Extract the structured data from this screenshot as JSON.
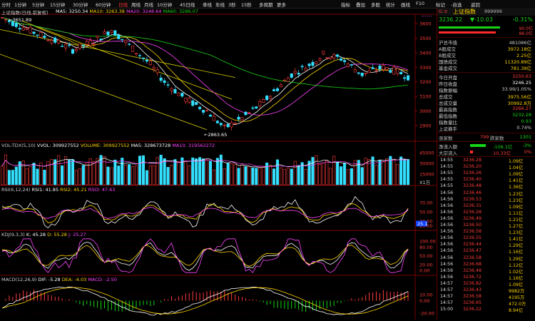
{
  "toolbar": {
    "items": [
      "分时",
      "1分钟",
      "5分钟",
      "15分钟",
      "30分钟",
      "60分钟",
      "日线",
      "周线",
      "月线",
      "10分钟",
      "45日线",
      "季线",
      "年线",
      "3秒",
      "15秒",
      "多周期",
      "更多"
    ],
    "active_index": 6,
    "right_items": [
      "指标",
      "叠加",
      "多股",
      "统计",
      "画线",
      "F10",
      "标记",
      "-自选",
      "返回"
    ]
  },
  "main": {
    "title": "上证指数(日线,前复权)",
    "ma_legend": [
      {
        "label": "MA5: 3250.34",
        "color": "#ffffff"
      },
      {
        "label": "MA10: 3263.38",
        "color": "#ffd400"
      },
      {
        "label": "MA20: 3248.64",
        "color": "#ff44ff"
      },
      {
        "label": "MA60: 3286.07",
        "color": "#17d517"
      }
    ],
    "price_ticks": [
      "3600",
      "3500",
      "3400",
      "3300",
      "3200",
      "3100",
      "3000",
      "2900"
    ],
    "high_label": "3651.89",
    "low_label": "2863.65"
  },
  "volume": {
    "legend": [
      {
        "label": "VOL-TDX(5,10)",
        "color": "#ccc"
      },
      {
        "label": "VVOL: 309927552",
        "color": "#fff"
      },
      {
        "label": "VOLUME: 309927552",
        "color": "#ffd400"
      },
      {
        "label": "MA5: 328673728",
        "color": "#fff"
      },
      {
        "label": "MA10: 319562272",
        "color": "#ff44ff"
      }
    ],
    "ticks": [
      "45000",
      "30000",
      "15000"
    ],
    "unit": "X1万"
  },
  "rsi": {
    "legend": [
      {
        "label": "RSI(6,12,24)",
        "color": "#ccc"
      },
      {
        "label": "RSI1: 41.85",
        "color": "#fff"
      },
      {
        "label": "RSI2: 45.21",
        "color": "#ffd400"
      },
      {
        "label": "RSI3: 47.63",
        "color": "#ff44ff"
      }
    ],
    "ticks": [
      "70.00",
      "50.00",
      "30.00",
      "20.00"
    ],
    "marker": "25.1"
  },
  "kdj": {
    "legend": [
      {
        "label": "KDJ(9,3,3)",
        "color": "#ccc"
      },
      {
        "label": "K: 45.28",
        "color": "#fff"
      },
      {
        "label": "D: 55.28",
        "color": "#ffd400"
      },
      {
        "label": "J: 25.27",
        "color": "#ff44ff"
      }
    ],
    "ticks": [
      "100.00",
      "80.00",
      "50.00",
      "20.00",
      "0.00"
    ]
  },
  "macd": {
    "legend": [
      {
        "label": "MACD(12,26,9)",
        "color": "#ccc"
      },
      {
        "label": "DIF: -5.28",
        "color": "#fff"
      },
      {
        "label": "DEA: -4.03",
        "color": "#ffd400"
      },
      {
        "label": "MACD: -2.50",
        "color": "#ff44ff"
      }
    ],
    "ticks": [
      "10.00",
      "0.00",
      "-20.00"
    ]
  },
  "panel": {
    "name": "上证指数",
    "code": "999999",
    "price": "3236.22",
    "change": "▼-10.03",
    "pct": "-0.31%",
    "bar1_label": "90.0亿",
    "bar2_label": "86.0亿",
    "stats1": [
      {
        "label": "沪总市值",
        "value": "481086亿",
        "color": "#ccc"
      },
      {
        "label": "A股成交",
        "value": "3972.18亿",
        "color": "#ffd400"
      },
      {
        "label": "B股成交",
        "value": "2.25亿",
        "color": "#ffd400"
      },
      {
        "label": "国债成交",
        "value": "11320.89亿",
        "color": "#ffd400"
      },
      {
        "label": "基金成交",
        "value": "781.39亿",
        "color": "#ffd400"
      }
    ],
    "stats2": [
      {
        "label": "今日开盘",
        "value": "3250.63",
        "color": "#ff3b3b"
      },
      {
        "label": "昨日收盘",
        "value": "3246.25",
        "color": "#fff"
      },
      {
        "label": "指数振幅",
        "value": "33.99/1.05%",
        "color": "#ccc"
      },
      {
        "label": "总成交",
        "value": "3975.56亿",
        "color": "#ffd400"
      },
      {
        "label": "总成交量",
        "value": "30992.8万",
        "color": "#ffd400"
      },
      {
        "label": "最高指数",
        "value": "3266.27",
        "color": "#ff3b3b"
      },
      {
        "label": "最低指数",
        "value": "3232.28",
        "color": "#17d517"
      },
      {
        "label": "指数量比",
        "value": "0.93",
        "color": "#17d517"
      },
      {
        "label": "上证换手",
        "value": "0.74%",
        "color": "#ccc"
      }
    ],
    "updown": {
      "up_label": "涨家数",
      "up": "799",
      "down_label": "跌家数",
      "down": "1301"
    },
    "flow": [
      {
        "label": "净流入额",
        "value": "-106.1亿",
        "pct": "-3%"
      },
      {
        "label": "大宗流入",
        "value": "10.33亿",
        "pct": "0%"
      }
    ],
    "ticks": [
      {
        "t": "14:55",
        "p": "3236.28",
        "v": "1.09亿"
      },
      {
        "t": "14:55",
        "p": "3236.20",
        "v": "1.04亿"
      },
      {
        "t": "14:55",
        "p": "3236.26",
        "v": "1.09亿"
      },
      {
        "t": "14:55",
        "p": "3236.40",
        "v": "1.41亿"
      },
      {
        "t": "14:55",
        "p": "3236.48",
        "v": "1.36亿"
      },
      {
        "t": "14:56",
        "p": "3236.46",
        "v": "1.23亿"
      },
      {
        "t": "14:56",
        "p": "3236.53",
        "v": "1.23亿"
      },
      {
        "t": "14:56",
        "p": "3236.31",
        "v": "1.09亿"
      },
      {
        "t": "14:56",
        "p": "3236.28",
        "v": "1.11亿"
      },
      {
        "t": "14:56",
        "p": "3236.49",
        "v": "1.21亿"
      },
      {
        "t": "14:56",
        "p": "3236.50",
        "v": "1.27亿"
      },
      {
        "t": "14:56",
        "p": "3236.58",
        "v": "1.23亿"
      },
      {
        "t": "14:56",
        "p": "3236.55",
        "v": "1.41亿"
      },
      {
        "t": "14:56",
        "p": "3236.44",
        "v": "1.29亿"
      },
      {
        "t": "14:56",
        "p": "3236.47",
        "v": "1.16亿"
      },
      {
        "t": "14:56",
        "p": "3236.58",
        "v": "1.29亿"
      },
      {
        "t": "14:56",
        "p": "3236.68",
        "v": "1.12亿"
      },
      {
        "t": "14:56",
        "p": "3236.48",
        "v": "1.02亿"
      },
      {
        "t": "14:56",
        "p": "3236.72",
        "v": "1.16亿"
      },
      {
        "t": "14:57",
        "p": "3236.82",
        "v": "1.09亿"
      },
      {
        "t": "14:57",
        "p": "3236.43",
        "v": "9982万"
      },
      {
        "t": "14:57",
        "p": "3236.58",
        "v": "4195万"
      },
      {
        "t": "14:57",
        "p": "3236.65",
        "v": "472.0万"
      },
      {
        "t": "15:00",
        "p": "3236.22",
        "v": "8.94亿"
      }
    ]
  }
}
